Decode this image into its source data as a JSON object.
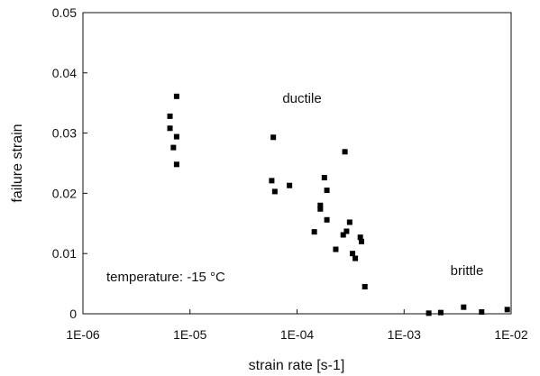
{
  "chart_data": {
    "type": "scatter",
    "x_scale": "log",
    "xlabel": "strain rate  [s-1]",
    "ylabel": "failure strain",
    "xlim": [
      1e-06,
      0.01
    ],
    "ylim": [
      0,
      0.05
    ],
    "grid": false,
    "legend": "none",
    "x_ticks": [
      1e-06,
      1e-05,
      0.0001,
      0.001,
      0.01
    ],
    "x_tick_labels": [
      "1E-06",
      "1E-05",
      "1E-04",
      "1E-03",
      "1E-02"
    ],
    "y_ticks": [
      0,
      0.01,
      0.02,
      0.03,
      0.04,
      0.05
    ],
    "y_tick_labels": [
      "0",
      "0.01",
      "0.02",
      "0.03",
      "0.04",
      "0.05"
    ],
    "annotations": {
      "ductile": "ductile",
      "brittle": "brittle",
      "temperature": "temperature:  -15 °C"
    },
    "marker_color": "#000000",
    "points": [
      {
        "x": 6.5e-06,
        "y": 0.0328
      },
      {
        "x": 7.5e-06,
        "y": 0.0361
      },
      {
        "x": 6.5e-06,
        "y": 0.0308
      },
      {
        "x": 7.5e-06,
        "y": 0.0294
      },
      {
        "x": 7e-06,
        "y": 0.0276
      },
      {
        "x": 7.5e-06,
        "y": 0.0248
      },
      {
        "x": 6e-05,
        "y": 0.0293
      },
      {
        "x": 5.8e-05,
        "y": 0.0221
      },
      {
        "x": 6.2e-05,
        "y": 0.0203
      },
      {
        "x": 8.5e-05,
        "y": 0.0213
      },
      {
        "x": 0.00028,
        "y": 0.0269
      },
      {
        "x": 0.00018,
        "y": 0.0226
      },
      {
        "x": 0.00019,
        "y": 0.0205
      },
      {
        "x": 0.000165,
        "y": 0.018
      },
      {
        "x": 0.000165,
        "y": 0.0174
      },
      {
        "x": 0.00019,
        "y": 0.0156
      },
      {
        "x": 0.000145,
        "y": 0.0136
      },
      {
        "x": 0.00023,
        "y": 0.0107
      },
      {
        "x": 0.00031,
        "y": 0.0152
      },
      {
        "x": 0.00029,
        "y": 0.0137
      },
      {
        "x": 0.00027,
        "y": 0.0131
      },
      {
        "x": 0.00033,
        "y": 0.01
      },
      {
        "x": 0.00035,
        "y": 0.0092
      },
      {
        "x": 0.00039,
        "y": 0.0127
      },
      {
        "x": 0.0004,
        "y": 0.012
      },
      {
        "x": 0.00043,
        "y": 0.0045
      },
      {
        "x": 0.0017,
        "y": 0.0001
      },
      {
        "x": 0.0022,
        "y": 0.0002
      },
      {
        "x": 0.0036,
        "y": 0.0011
      },
      {
        "x": 0.0053,
        "y": 0.0003
      },
      {
        "x": 0.0092,
        "y": 0.0007
      }
    ]
  }
}
